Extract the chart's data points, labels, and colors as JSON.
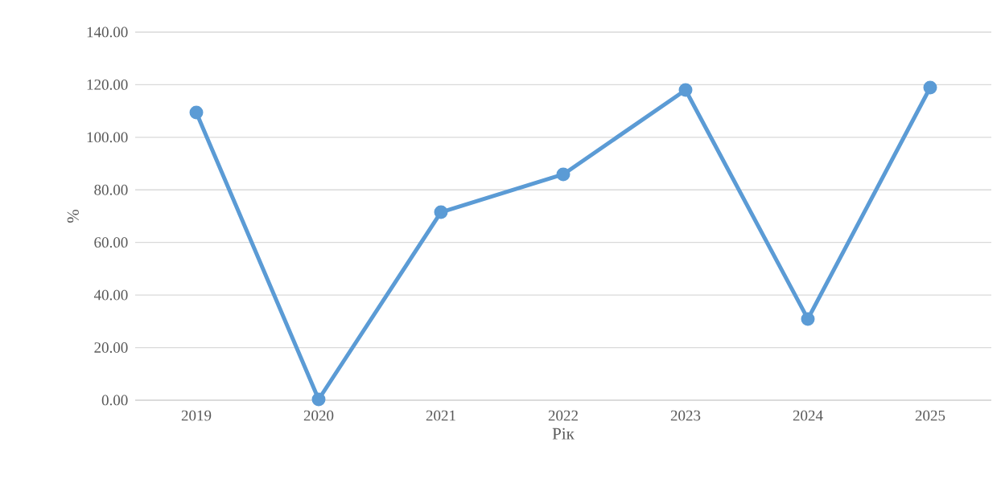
{
  "chart_data": {
    "type": "line",
    "xlabel": "Рік",
    "ylabel": "%",
    "categories": [
      "2019",
      "2020",
      "2021",
      "2022",
      "2023",
      "2024",
      "2025"
    ],
    "series": [
      {
        "color": "#5b9bd5",
        "values": [
          109.4,
          0.3,
          71.5,
          85.9,
          118.0,
          30.9,
          118.9
        ]
      }
    ],
    "ylim": [
      0,
      140
    ],
    "yticks": [
      {
        "value": 0,
        "label": "0.00"
      },
      {
        "value": 20,
        "label": "20.00"
      },
      {
        "value": 40,
        "label": "40.00"
      },
      {
        "value": 60,
        "label": "60.00"
      },
      {
        "value": 80,
        "label": "80.00"
      },
      {
        "value": 100,
        "label": "100.00"
      },
      {
        "value": 120,
        "label": "120.00"
      },
      {
        "value": 140,
        "label": "140.00"
      }
    ],
    "grid": "y",
    "marker": "circle",
    "line_style": "solid"
  }
}
